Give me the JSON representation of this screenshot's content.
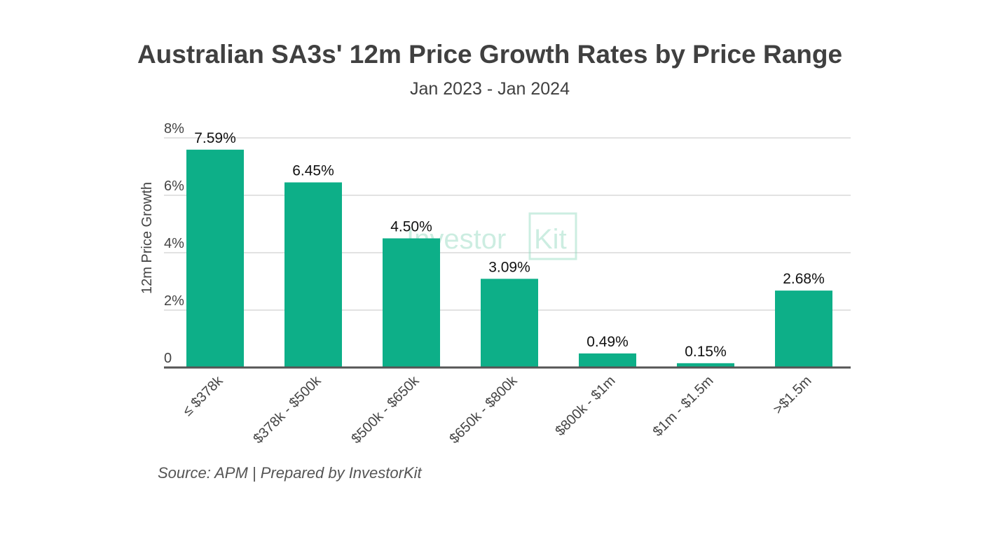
{
  "chart_data": {
    "type": "bar",
    "title": "Australian SA3s' 12m Price Growth Rates by Price Range",
    "subtitle": "Jan 2023 - Jan 2024",
    "xlabel": "",
    "ylabel": "12m Price Growth",
    "ylim": [
      0,
      8
    ],
    "yticks": [
      {
        "value": 0,
        "label": "0"
      },
      {
        "value": 2,
        "label": "2%"
      },
      {
        "value": 4,
        "label": "4%"
      },
      {
        "value": 6,
        "label": "6%"
      },
      {
        "value": 8,
        "label": "8%"
      }
    ],
    "grid": true,
    "categories": [
      "≤ $378k",
      "$378k - $500k",
      "$500k - $650k",
      "$650k - $800k",
      "$800k - $1m",
      "$1m - $1.5m",
      ">$1.5m"
    ],
    "values": [
      7.59,
      6.45,
      4.5,
      3.09,
      0.49,
      0.15,
      2.68
    ],
    "data_labels": [
      "7.59%",
      "6.45%",
      "4.50%",
      "3.09%",
      "0.49%",
      "0.15%",
      "2.68%"
    ],
    "bar_color": "#0daf88",
    "source": "Source: APM | Prepared by InvestorKit",
    "watermark": {
      "text_plain": "Investor",
      "text_boxed": "Kit"
    }
  }
}
